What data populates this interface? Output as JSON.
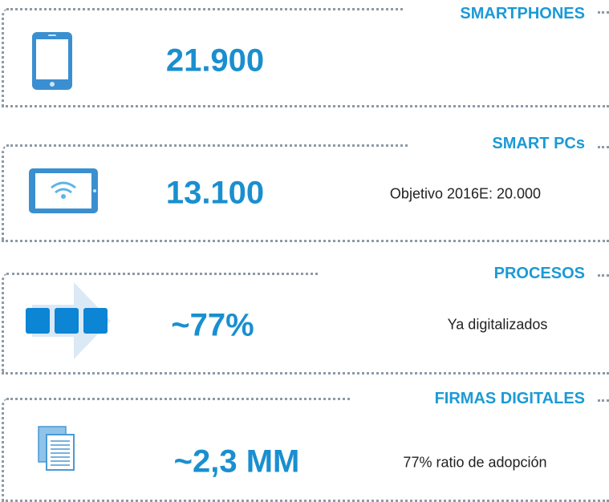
{
  "cards": [
    {
      "title": "SMARTPHONES",
      "value": "21.900"
    },
    {
      "title": "SMART PCs",
      "value": "13.100",
      "note": "Objetivo 2016E: 20.000"
    },
    {
      "title": "PROCESOS",
      "value": "~77%",
      "note": "Ya digitalizados"
    },
    {
      "title": "FIRMAS DIGITALES",
      "value": "~2,3 MM",
      "note": "77% ratio de adopción"
    }
  ]
}
